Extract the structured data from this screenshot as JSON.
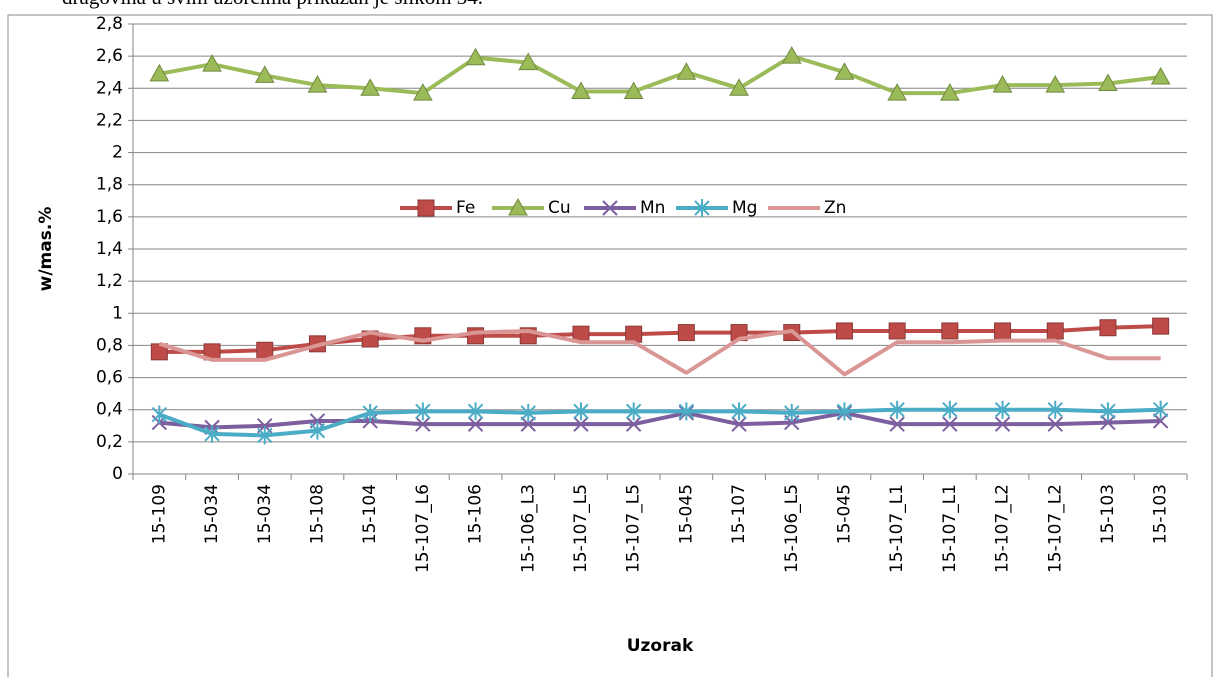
{
  "document_text": "dragovina u svim uzorcima prikazan je slikom 34.",
  "chart_data": {
    "type": "line",
    "y_label": "w/mas.%",
    "x_label": "Uzorak",
    "categories": [
      "15-109",
      "15-034",
      "15-034",
      "15-108",
      "15-104",
      "15-107_L6",
      "15-106",
      "15-106_L3",
      "15-107_L5",
      "15-107_L5",
      "15-045",
      "15-107",
      "15-106_L5",
      "15-045",
      "15-107_L1",
      "15-107_L1",
      "15-107_L2",
      "15-107_L2",
      "15-103",
      "15-103"
    ],
    "series": [
      {
        "name": "Fe",
        "color": "#be4b48",
        "marker": "square",
        "values": [
          0.76,
          0.76,
          0.77,
          0.81,
          0.84,
          0.86,
          0.86,
          0.86,
          0.87,
          0.87,
          0.88,
          0.88,
          0.88,
          0.89,
          0.89,
          0.89,
          0.89,
          0.89,
          0.91,
          0.92
        ]
      },
      {
        "name": "Cu",
        "color": "#9bbb59",
        "marker": "triangle",
        "values": [
          2.49,
          2.55,
          2.48,
          2.42,
          2.4,
          2.37,
          2.59,
          2.56,
          2.38,
          2.38,
          2.5,
          2.4,
          2.6,
          2.5,
          2.37,
          2.37,
          2.42,
          2.42,
          2.43,
          2.47
        ]
      },
      {
        "name": "Mn",
        "color": "#7d5f9f",
        "marker": "x",
        "values": [
          0.32,
          0.29,
          0.3,
          0.33,
          0.33,
          0.31,
          0.31,
          0.31,
          0.31,
          0.31,
          0.38,
          0.31,
          0.32,
          0.38,
          0.31,
          0.31,
          0.31,
          0.31,
          0.32,
          0.33
        ]
      },
      {
        "name": "Mg",
        "color": "#4bacc6",
        "marker": "star",
        "values": [
          0.37,
          0.25,
          0.24,
          0.27,
          0.38,
          0.39,
          0.39,
          0.38,
          0.39,
          0.39,
          0.39,
          0.39,
          0.38,
          0.39,
          0.4,
          0.4,
          0.4,
          0.4,
          0.39,
          0.4
        ]
      },
      {
        "name": "Zn",
        "color": "#d99694",
        "marker": "none",
        "values": [
          0.81,
          0.71,
          0.71,
          0.8,
          0.88,
          0.83,
          0.88,
          0.89,
          0.82,
          0.82,
          0.63,
          0.84,
          0.89,
          0.62,
          0.82,
          0.82,
          0.83,
          0.83,
          0.72,
          0.72
        ]
      }
    ],
    "ylim": [
      0,
      2.8
    ],
    "yticks": [
      0,
      {
        "value": 0.2,
        "label": "0,2"
      },
      {
        "value": 0.4,
        "label": "0,4"
      },
      {
        "value": 0.6,
        "label": "0,6"
      },
      {
        "value": 0.8,
        "label": "0,8"
      },
      1,
      {
        "value": 1.2,
        "label": "1,2"
      },
      {
        "value": 1.4,
        "label": "1,4"
      },
      {
        "value": 1.6,
        "label": "1,6"
      },
      {
        "value": 1.8,
        "label": "1,8"
      },
      2,
      {
        "value": 2.2,
        "label": "2,2"
      },
      {
        "value": 2.4,
        "label": "2,4"
      },
      {
        "value": 2.6,
        "label": "2,6"
      },
      {
        "value": 2.8,
        "label": "2,8"
      }
    ],
    "grid": true,
    "legend": "center"
  }
}
